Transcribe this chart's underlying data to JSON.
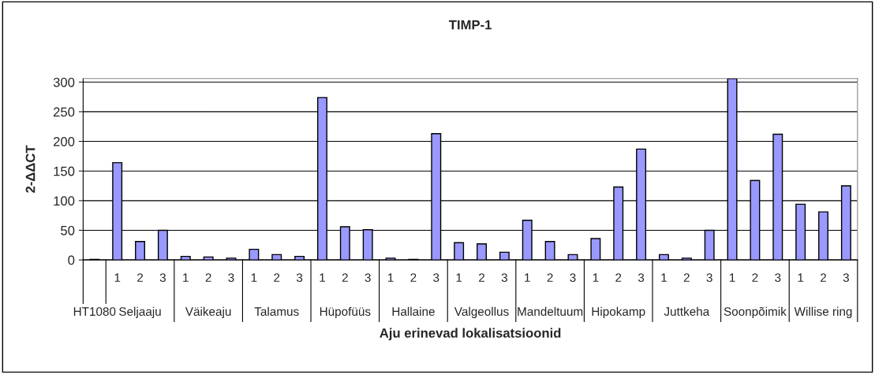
{
  "chart_data": {
    "type": "bar",
    "title": "TIMP-1",
    "xlabel": "Aju erinevad lokalisatsioonid",
    "ylabel": "2-ΔΔCT",
    "categories": [
      null,
      "1",
      "2",
      "3",
      "1",
      "2",
      "3",
      "1",
      "2",
      "3",
      "1",
      "2",
      "3",
      "1",
      "2",
      "3",
      "1",
      "2",
      "3",
      "1",
      "2",
      "3",
      "1",
      "2",
      "3",
      "1",
      "2",
      "3",
      "1",
      "2",
      "3",
      "1",
      "2",
      "3"
    ],
    "values": [
      1,
      164,
      31,
      50,
      6,
      5,
      3,
      18,
      9,
      6,
      274,
      56,
      51,
      3,
      1,
      213,
      29,
      27,
      13,
      67,
      31,
      9,
      36,
      123,
      187,
      9,
      3,
      50,
      306,
      134,
      212,
      94,
      81,
      125
    ],
    "color": "#9999ff",
    "annotations": [
      "HT1080",
      "Seljaaju",
      "Väikeaju",
      "Talamus",
      "Hüpofüüs",
      "Hallaine",
      "Valgeollus",
      "Mandeltuum",
      "Hipokamp",
      "Juttkeha",
      "Soonpõimik",
      "Willise ring"
    ],
    "ylim": [
      0,
      306
    ],
    "yticks": [
      0,
      50,
      100,
      150,
      200,
      250,
      300
    ],
    "grid": "y",
    "legend": false
  }
}
